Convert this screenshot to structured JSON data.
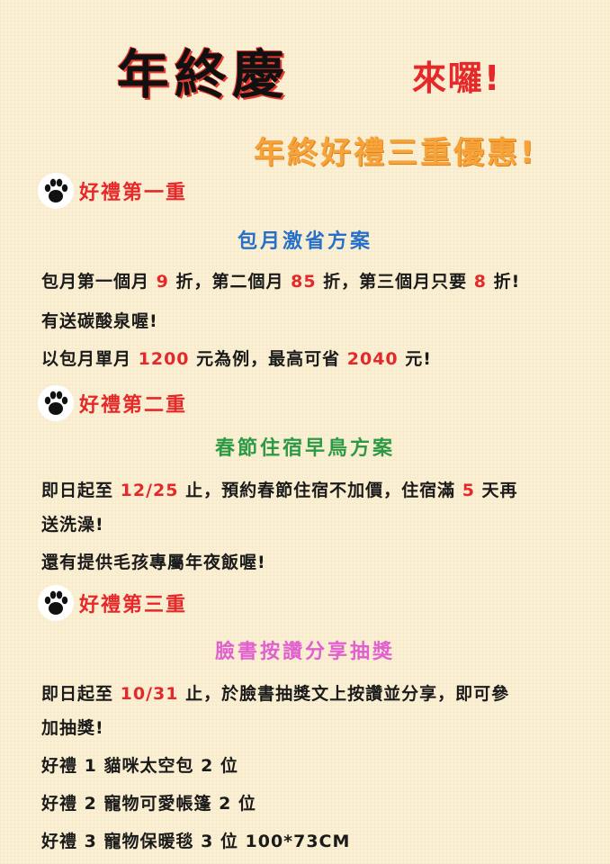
{
  "header": {
    "title": "年終慶",
    "title_suffix": "來囉!",
    "headline": "年終好禮三重優惠!"
  },
  "sections": [
    {
      "label": "好禮第一重",
      "plan": "包月激省方案",
      "lines": [
        [
          "包月第一個月 ",
          "9",
          " 折，第二個月 ",
          "85",
          " 折，第三個月只要 ",
          "8",
          " 折!"
        ],
        [
          "有送碳酸泉喔!"
        ],
        [
          "以包月單月 ",
          "1200",
          " 元為例，最高可省 ",
          "2040",
          " 元!"
        ]
      ]
    },
    {
      "label": "好禮第二重",
      "plan": "春節住宿早鳥方案",
      "lines": [
        [
          "即日起至 ",
          "12/25",
          " 止，預約春節住宿不加價，住宿滿 ",
          "5",
          " 天再"
        ],
        [
          "送洗澡!"
        ],
        [
          "還有提供毛孩專屬年夜飯喔!"
        ]
      ]
    },
    {
      "label": "好禮第三重",
      "plan": "臉書按讚分享抽獎",
      "lines": [
        [
          "即日起至 ",
          "10/31",
          " 止，於臉書抽獎文上按讚並分享，即可參"
        ],
        [
          "加抽獎!"
        ],
        [
          "好禮 1  貓咪太空包  2 位"
        ],
        [
          "好禮 2  寵物可愛帳篷  2 位"
        ],
        [
          "好禮 3  寵物保暖毯  3 位  100*73CM"
        ]
      ]
    }
  ],
  "icons": {
    "section_icon": "paw-print-icon"
  },
  "colors": {
    "accent_red": "#e5282a",
    "headline_orange": "#f6a33a",
    "plan_blue": "#2770c9",
    "plan_green": "#2c9a45",
    "plan_pink": "#e25fd0"
  }
}
